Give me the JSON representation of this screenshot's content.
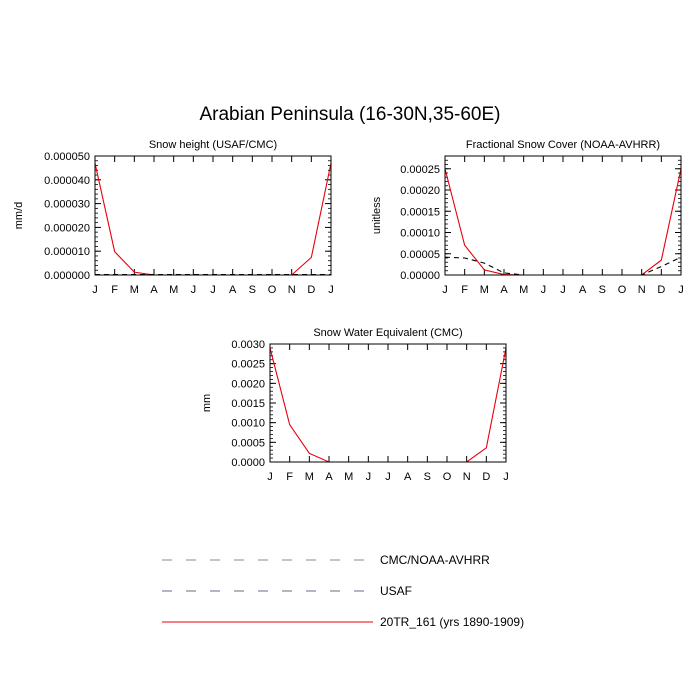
{
  "page_title": "Arabian Peninsula (16-30N,35-60E)",
  "colors": {
    "model": "#e8000b",
    "obs": "#000000",
    "legend_dash": "#8a8a9a"
  },
  "legend": [
    {
      "label": "CMC/NOAA-AVHRR",
      "style": "dashed",
      "color": "#8a8a8a"
    },
    {
      "label": "USAF",
      "style": "dashed",
      "color": "#6a6a8a"
    },
    {
      "label": "20TR_161 (yrs 1890-1909)",
      "style": "solid",
      "color": "#e8000b"
    }
  ],
  "chart_data": [
    {
      "type": "line",
      "title": "Snow height (USAF/CMC)",
      "ylabel": "mm/d",
      "xlabel": "",
      "categories": [
        "J",
        "F",
        "M",
        "A",
        "M",
        "J",
        "J",
        "A",
        "S",
        "O",
        "N",
        "D",
        "J"
      ],
      "ylim": [
        0,
        5e-05
      ],
      "yticks": [
        "0.000000",
        "0.000010",
        "0.000020",
        "0.000030",
        "0.000040",
        "0.000050"
      ],
      "series": [
        {
          "style": "solid",
          "color": "#e8000b",
          "values": [
            4.7e-05,
            9.8e-06,
            1.2e-06,
            0,
            0,
            0,
            0,
            0,
            0,
            0,
            0,
            7.4e-06,
            4.7e-05
          ]
        },
        {
          "style": "dashed",
          "color": "#000000",
          "values": [
            2e-07,
            2e-07,
            2e-07,
            2e-07,
            2e-07,
            2e-07,
            2e-07,
            2e-07,
            2e-07,
            2e-07,
            2e-07,
            2e-07,
            2e-07
          ]
        }
      ]
    },
    {
      "type": "line",
      "title": "Fractional Snow Cover (NOAA-AVHRR)",
      "ylabel": "unitless",
      "xlabel": "",
      "categories": [
        "J",
        "F",
        "M",
        "A",
        "M",
        "J",
        "J",
        "A",
        "S",
        "O",
        "N",
        "D",
        "J"
      ],
      "ylim": [
        0,
        0.00028
      ],
      "yticks": [
        "0.00000",
        "0.00005",
        "0.00010",
        "0.00015",
        "0.00020",
        "0.00025"
      ],
      "series": [
        {
          "style": "solid",
          "color": "#e8000b",
          "values": [
            0.00025,
            7e-05,
            1.2e-05,
            1e-06,
            0,
            0,
            0,
            0,
            0,
            0,
            0,
            3.5e-05,
            0.00025
          ]
        },
        {
          "style": "dashed",
          "color": "#000000",
          "values": [
            4.2e-05,
            4e-05,
            2.8e-05,
            5e-06,
            0,
            0,
            0,
            0,
            0,
            0,
            0,
            2e-05,
            4.2e-05
          ]
        }
      ]
    },
    {
      "type": "line",
      "title": "Snow Water Equivalent (CMC)",
      "ylabel": "mm",
      "xlabel": "",
      "categories": [
        "J",
        "F",
        "M",
        "A",
        "M",
        "J",
        "J",
        "A",
        "S",
        "O",
        "N",
        "D",
        "J"
      ],
      "ylim": [
        0,
        0.003
      ],
      "yticks": [
        "0.0000",
        "0.0005",
        "0.0010",
        "0.0015",
        "0.0020",
        "0.0025",
        "0.0030"
      ],
      "series": [
        {
          "style": "solid",
          "color": "#e8000b",
          "values": [
            0.0029,
            0.00095,
            0.00022,
            0,
            0,
            0,
            0,
            0,
            0,
            0,
            0,
            0.00036,
            0.0029
          ]
        },
        {
          "style": "dashed",
          "color": "#000000",
          "values": [
            0,
            0,
            0,
            0,
            0,
            0,
            0,
            0,
            0,
            0,
            0,
            0,
            0
          ]
        }
      ]
    }
  ]
}
